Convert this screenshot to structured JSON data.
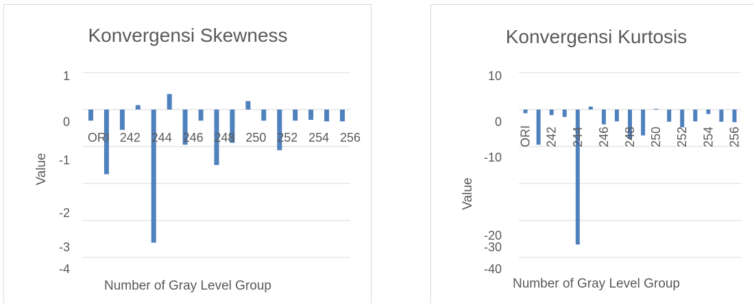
{
  "chart_data": [
    {
      "type": "bar",
      "title": "Konvergensi Skewness",
      "xlabel": "Number of Gray Level Group",
      "ylabel": "Value",
      "y_tick_labels": [
        "1",
        "0",
        "-1",
        "-2",
        "-3",
        "-4"
      ],
      "x_tick_labels": [
        "ORI",
        "242",
        "244",
        "246",
        "248",
        "250",
        "252",
        "254",
        "256"
      ],
      "grid": true,
      "bar_color": "#4f81bd",
      "values": [
        -0.3,
        -1.75,
        -0.55,
        0.12,
        -3.6,
        0.42,
        -0.95,
        -0.3,
        -1.5,
        -0.9,
        0.23,
        -0.3,
        -1.1,
        -0.3,
        -0.28,
        -0.32,
        -0.32
      ]
    },
    {
      "type": "bar",
      "title": "Konvergensi Kurtosis",
      "xlabel": "Number of Gray Level Group",
      "ylabel": "Value",
      "y_tick_labels": [
        "10",
        "0",
        "-10",
        "-10",
        "-20",
        "-30",
        "-40"
      ],
      "x_tick_labels": [
        "ORI",
        "242",
        "244",
        "246",
        "248",
        "250",
        "252",
        "254",
        "256"
      ],
      "grid": true,
      "bar_color": "#4f81bd",
      "values": [
        -1.0,
        -9.5,
        -1.5,
        -2.0,
        -36.5,
        0.8,
        -4.0,
        -3.2,
        -8.0,
        -7.0,
        0.2,
        -3.3,
        -4.8,
        -3.2,
        -1.2,
        -3.3,
        -3.4
      ]
    }
  ]
}
